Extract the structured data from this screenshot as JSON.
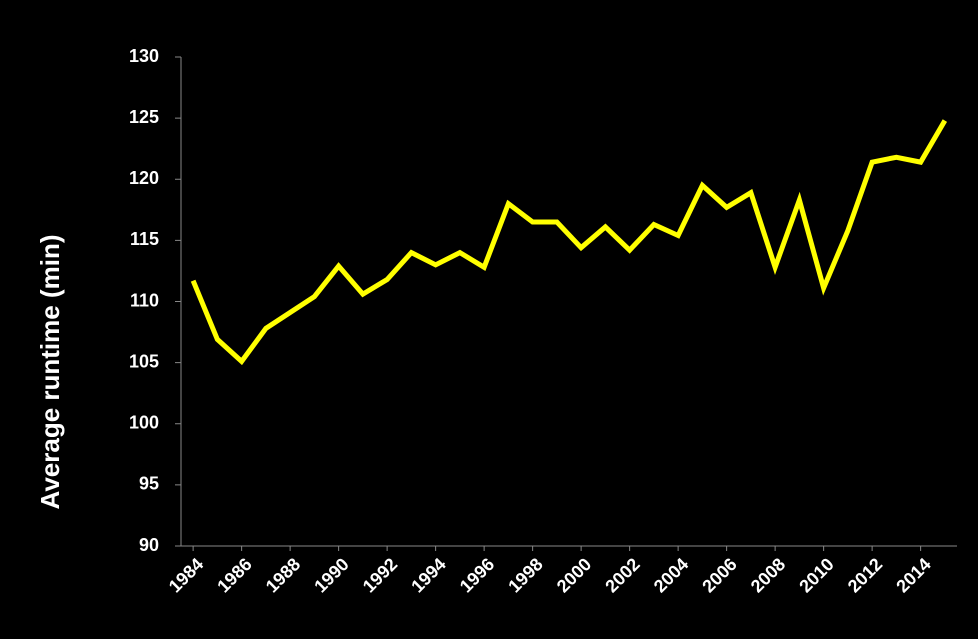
{
  "chart_data": {
    "type": "line",
    "y_label": "Average runtime (min)",
    "x": [
      1984,
      1985,
      1986,
      1987,
      1988,
      1989,
      1990,
      1991,
      1992,
      1993,
      1994,
      1995,
      1996,
      1997,
      1998,
      1999,
      2000,
      2001,
      2002,
      2003,
      2004,
      2005,
      2006,
      2007,
      2008,
      2009,
      2010,
      2011,
      2012,
      2013,
      2014,
      2015
    ],
    "series": [
      {
        "name": "Average runtime",
        "color": "#ffff00",
        "values": [
          111.7,
          106.9,
          105.1,
          107.8,
          109.1,
          110.4,
          112.9,
          110.6,
          111.8,
          114.0,
          113.0,
          114.0,
          112.8,
          118.0,
          116.5,
          116.5,
          114.4,
          116.1,
          114.2,
          116.3,
          115.4,
          119.5,
          117.7,
          118.9,
          112.8,
          118.3,
          111.1,
          115.8,
          121.4,
          121.8,
          121.4,
          124.8
        ]
      }
    ],
    "xlim": [
      1983.5,
      2015.5
    ],
    "xticks": [
      1984,
      1986,
      1988,
      1990,
      1992,
      1994,
      1996,
      1998,
      2000,
      2002,
      2004,
      2006,
      2008,
      2010,
      2012,
      2014
    ],
    "ylim": [
      90,
      130
    ],
    "yticks": [
      90,
      95,
      100,
      105,
      110,
      115,
      120,
      125,
      130
    ],
    "grid": false
  }
}
